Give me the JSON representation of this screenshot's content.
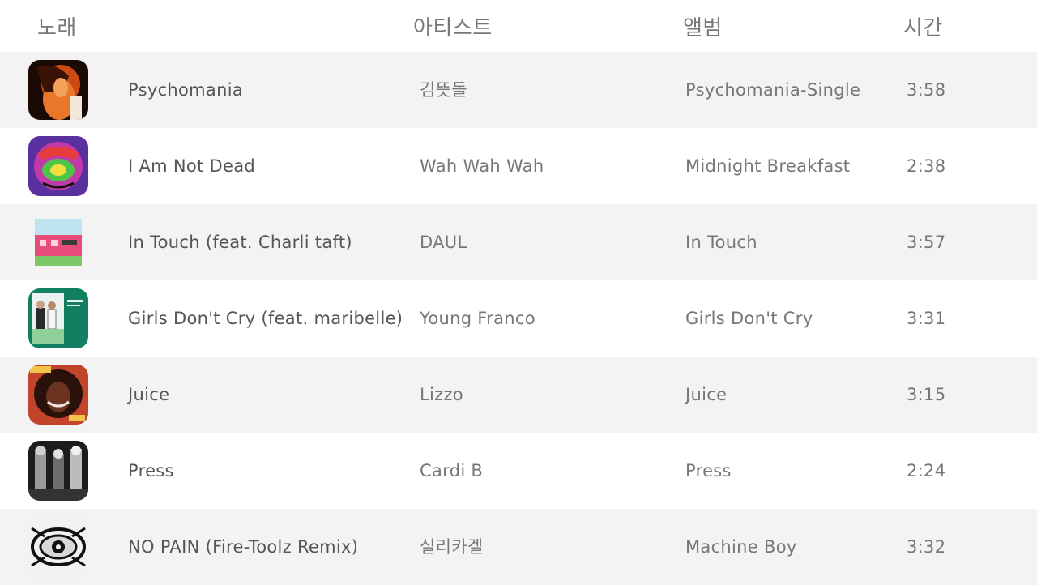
{
  "header": {
    "song": "노래",
    "artist": "아티스트",
    "album": "앨범",
    "time": "시간"
  },
  "tracks": [
    {
      "title": "Psychomania",
      "artist": "김뜻돌",
      "album": "Psychomania-Single",
      "time": "3:58"
    },
    {
      "title": "I Am Not Dead",
      "artist": "Wah Wah Wah",
      "album": "Midnight Breakfast",
      "time": "2:38"
    },
    {
      "title": "In Touch (feat. Charli taft)",
      "artist": "DAUL",
      "album": "In Touch",
      "time": "3:57"
    },
    {
      "title": "Girls Don't Cry (feat. maribelle)",
      "artist": "Young Franco",
      "album": "Girls Don't Cry",
      "time": "3:31"
    },
    {
      "title": "Juice",
      "artist": "Lizzo",
      "album": "Juice",
      "time": "3:15"
    },
    {
      "title": "Press",
      "artist": "Cardi B",
      "album": "Press",
      "time": "2:24"
    },
    {
      "title": "NO PAIN (Fire-Toolz Remix)",
      "artist": "실리카겔",
      "album": "Machine Boy",
      "time": "3:32"
    }
  ]
}
